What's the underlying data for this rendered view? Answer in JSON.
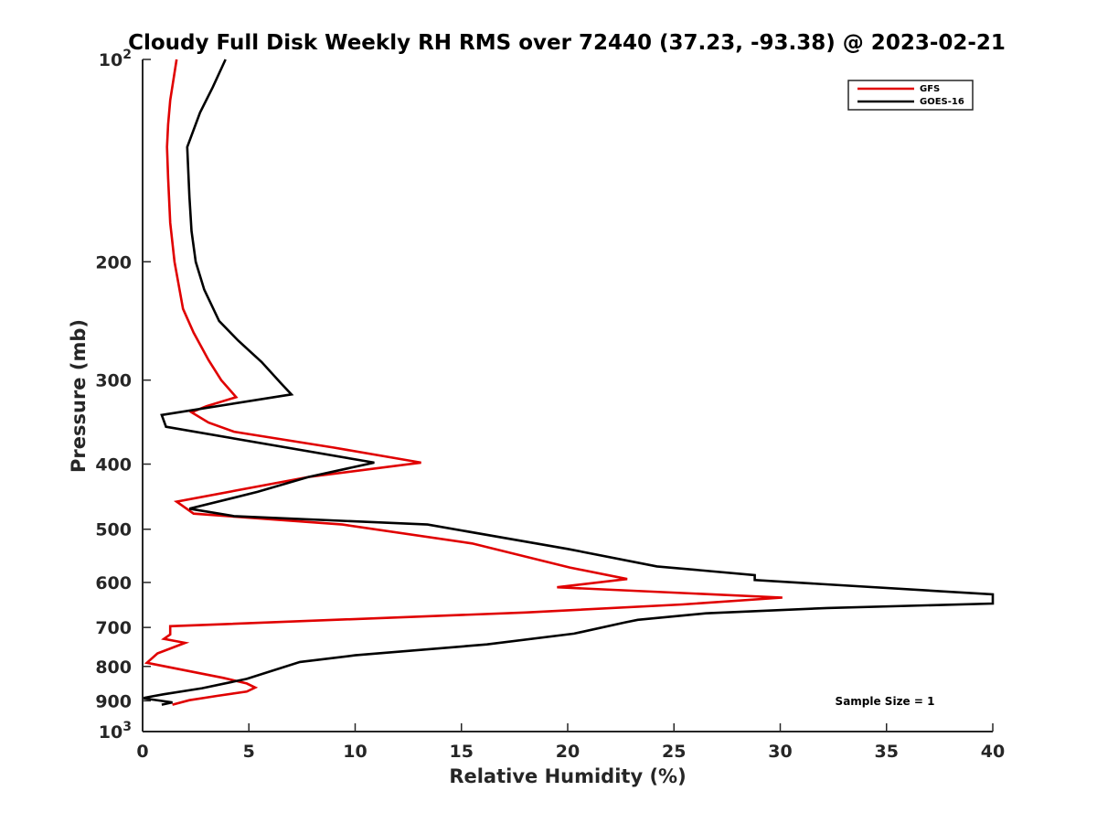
{
  "chart_data": {
    "type": "line",
    "title": "Cloudy Full Disk Weekly RH RMS over 72440 (37.23, -93.38) @ 2023-02-21",
    "xlabel": "Relative Humidity (%)",
    "ylabel": "Pressure (mb)",
    "xlim": [
      0,
      40
    ],
    "ylim": [
      100,
      1000
    ],
    "y_scale": "log",
    "y_reversed": true,
    "grid": false,
    "legend_position": "top-right",
    "x_ticks": [
      "0",
      "5",
      "10",
      "15",
      "20",
      "25",
      "30",
      "35",
      "40"
    ],
    "y_ticks": [
      {
        "value": 100,
        "base": "10",
        "exp": "2"
      },
      {
        "value": 200,
        "label": "200"
      },
      {
        "value": 300,
        "label": "300"
      },
      {
        "value": 400,
        "label": "400"
      },
      {
        "value": 500,
        "label": "500"
      },
      {
        "value": 600,
        "label": "600"
      },
      {
        "value": 700,
        "label": "700"
      },
      {
        "value": 800,
        "label": "800"
      },
      {
        "value": 900,
        "label": "900"
      },
      {
        "value": 1000,
        "base": "10",
        "exp": "3"
      }
    ],
    "annotation": "Sample Size = 1",
    "series": [
      {
        "name": "GFS",
        "color": "#e00000",
        "points": [
          [
            1.6,
            100
          ],
          [
            1.3,
            115
          ],
          [
            1.2,
            125
          ],
          [
            1.15,
            135
          ],
          [
            1.2,
            150
          ],
          [
            1.3,
            175
          ],
          [
            1.5,
            200
          ],
          [
            1.9,
            235
          ],
          [
            2.4,
            255
          ],
          [
            3.1,
            280
          ],
          [
            3.7,
            300
          ],
          [
            4.4,
            318
          ],
          [
            3.0,
            328
          ],
          [
            2.3,
            335
          ],
          [
            3.1,
            347
          ],
          [
            4.3,
            358
          ],
          [
            9.0,
            378
          ],
          [
            13.1,
            398
          ],
          [
            7.8,
            418
          ],
          [
            1.6,
            455
          ],
          [
            2.4,
            474
          ],
          [
            9.4,
            492
          ],
          [
            15.5,
            525
          ],
          [
            20.1,
            570
          ],
          [
            22.8,
            593
          ],
          [
            19.5,
            610
          ],
          [
            30.1,
            632
          ],
          [
            25.4,
            647
          ],
          [
            18.0,
            665
          ],
          [
            1.3,
            697
          ],
          [
            1.3,
            717
          ],
          [
            1.0,
            728
          ],
          [
            2.0,
            738
          ],
          [
            0.7,
            765
          ],
          [
            0.2,
            790
          ],
          [
            3.8,
            832
          ],
          [
            4.9,
            848
          ],
          [
            5.3,
            860
          ],
          [
            4.9,
            872
          ],
          [
            3.5,
            885
          ],
          [
            2.2,
            898
          ],
          [
            1.4,
            912
          ]
        ]
      },
      {
        "name": "GOES-16",
        "color": "#000000",
        "points": [
          [
            3.9,
            100
          ],
          [
            3.3,
            110
          ],
          [
            2.7,
            120
          ],
          [
            2.1,
            135
          ],
          [
            2.2,
            160
          ],
          [
            2.3,
            180
          ],
          [
            2.5,
            200
          ],
          [
            2.9,
            220
          ],
          [
            3.6,
            245
          ],
          [
            4.5,
            262
          ],
          [
            5.6,
            282
          ],
          [
            6.5,
            303
          ],
          [
            7.0,
            315
          ],
          [
            0.9,
            338
          ],
          [
            1.1,
            352
          ],
          [
            10.9,
            398
          ],
          [
            7.8,
            418
          ],
          [
            5.4,
            440
          ],
          [
            2.2,
            466
          ],
          [
            4.3,
            478
          ],
          [
            13.4,
            492
          ],
          [
            20.0,
            535
          ],
          [
            24.2,
            568
          ],
          [
            28.8,
            585
          ],
          [
            28.8,
            595
          ],
          [
            40.0,
            625
          ],
          [
            40.0,
            645
          ],
          [
            32.2,
            655
          ],
          [
            26.5,
            667
          ],
          [
            23.3,
            682
          ],
          [
            22.7,
            688
          ],
          [
            20.3,
            715
          ],
          [
            16.2,
            742
          ],
          [
            10.0,
            770
          ],
          [
            7.4,
            788
          ],
          [
            6.1,
            812
          ],
          [
            4.9,
            835
          ],
          [
            2.8,
            862
          ],
          [
            1.0,
            880
          ],
          [
            0.3,
            888
          ],
          [
            0.0,
            892
          ],
          [
            1.4,
            905
          ],
          [
            0.9,
            912
          ]
        ]
      }
    ]
  }
}
